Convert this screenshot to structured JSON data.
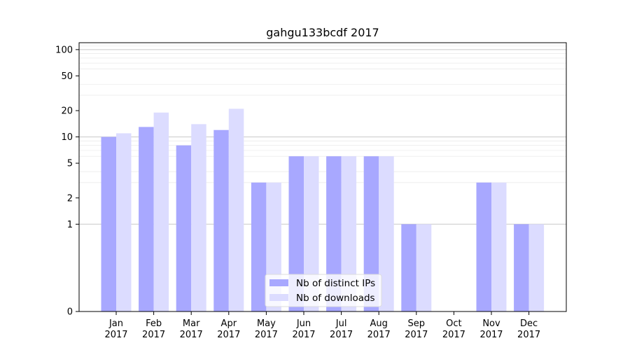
{
  "chart_data": {
    "type": "bar",
    "title": "gahgu133bcdf 2017",
    "scale": "symlog",
    "ylim": [
      0,
      120
    ],
    "yticks": [
      0,
      1,
      2,
      5,
      10,
      20,
      50,
      100
    ],
    "categories": [
      "Jan\n2017",
      "Feb\n2017",
      "Mar\n2017",
      "Apr\n2017",
      "May\n2017",
      "Jun\n2017",
      "Jul\n2017",
      "Aug\n2017",
      "Sep\n2017",
      "Oct\n2017",
      "Nov\n2017",
      "Dec\n2017"
    ],
    "series": [
      {
        "name": "Nb of distinct IPs",
        "color": "#a8a8ff",
        "values": [
          10,
          13,
          8,
          12,
          3,
          6,
          6,
          6,
          1,
          0,
          3,
          1
        ]
      },
      {
        "name": "Nb of downloads",
        "color": "#dcdcff",
        "values": [
          11,
          19,
          14,
          21,
          3,
          6,
          6,
          6,
          1,
          0,
          3,
          1
        ]
      }
    ],
    "grid": true,
    "legend_position": "lower-center"
  }
}
